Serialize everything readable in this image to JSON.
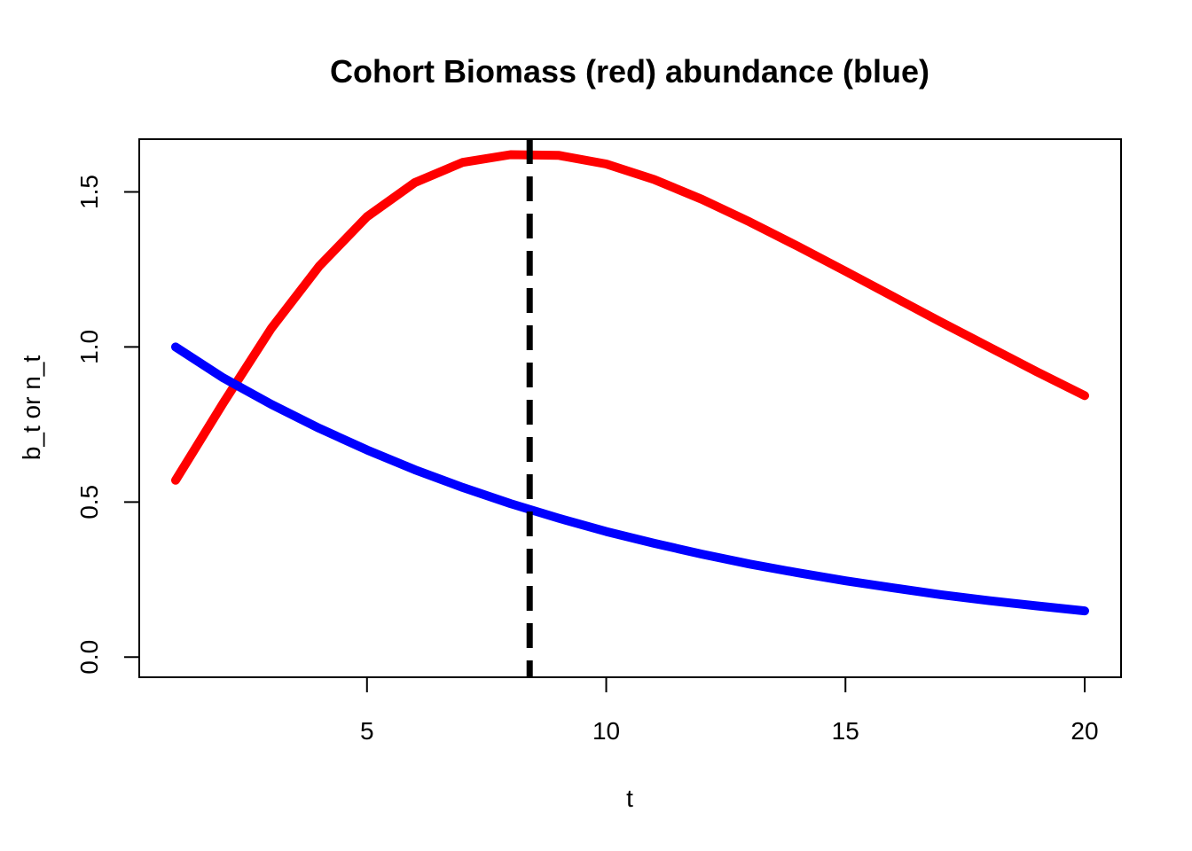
{
  "chart_data": {
    "type": "line",
    "title": "Cohort Biomass (red) abundance (blue)",
    "xlabel": "t",
    "ylabel": "b_t or n_t",
    "xlim": [
      0.24,
      20.76
    ],
    "ylim": [
      -0.065,
      1.67
    ],
    "x_ticks": [
      5,
      10,
      15,
      20
    ],
    "x_tick_labels": [
      "5",
      "10",
      "15",
      "20"
    ],
    "y_ticks": [
      0.0,
      0.5,
      1.0,
      1.5
    ],
    "y_tick_labels": [
      "0.0",
      "0.5",
      "1.0",
      "1.5"
    ],
    "grid": false,
    "x": [
      1,
      2,
      3,
      4,
      5,
      6,
      7,
      8,
      9,
      10,
      11,
      12,
      13,
      14,
      15,
      16,
      17,
      18,
      19,
      20
    ],
    "series": [
      {
        "color": "#ff0000",
        "values": [
          0.57,
          0.82,
          1.06,
          1.26,
          1.42,
          1.53,
          1.595,
          1.62,
          1.618,
          1.59,
          1.54,
          1.476,
          1.403,
          1.325,
          1.244,
          1.162,
          1.08,
          1.0,
          0.92,
          0.843
        ]
      },
      {
        "color": "#0000ff",
        "values": [
          1.0,
          0.9,
          0.815,
          0.738,
          0.668,
          0.604,
          0.547,
          0.495,
          0.448,
          0.405,
          0.367,
          0.332,
          0.3,
          0.272,
          0.246,
          0.223,
          0.201,
          0.182,
          0.165,
          0.149
        ]
      }
    ],
    "vline": {
      "x": 8.4,
      "color": "#000000",
      "style": "dashed"
    }
  }
}
